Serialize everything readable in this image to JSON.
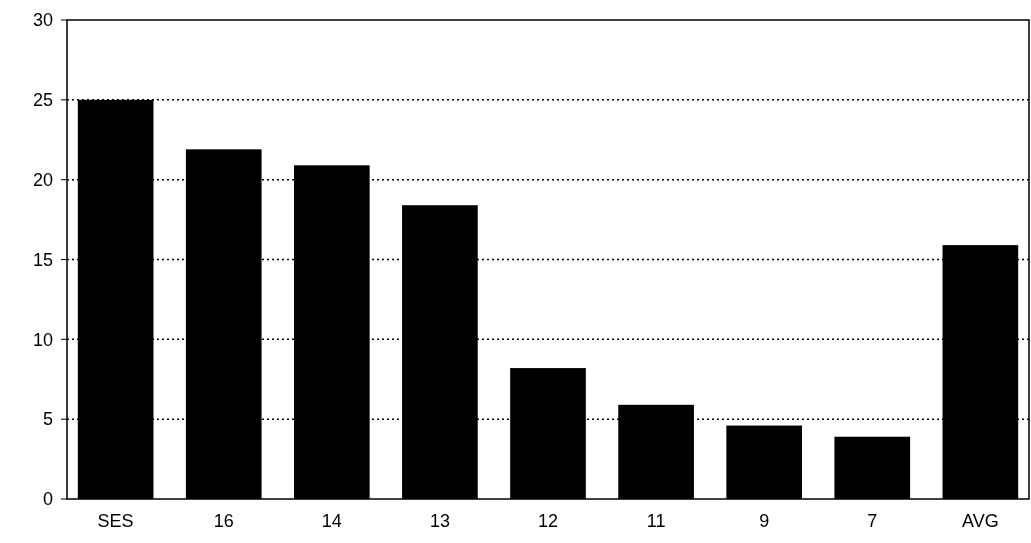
{
  "chart_data": {
    "type": "bar",
    "categories": [
      "SES",
      "16",
      "14",
      "13",
      "12",
      "11",
      "9",
      "7",
      "AVG"
    ],
    "values": [
      25.0,
      21.9,
      20.9,
      18.4,
      8.2,
      5.9,
      4.6,
      3.9,
      15.9
    ],
    "color": "#000000",
    "ylim": [
      0,
      30
    ],
    "yticks": [
      0,
      5,
      10,
      15,
      20,
      25,
      30
    ],
    "grid": "y"
  }
}
